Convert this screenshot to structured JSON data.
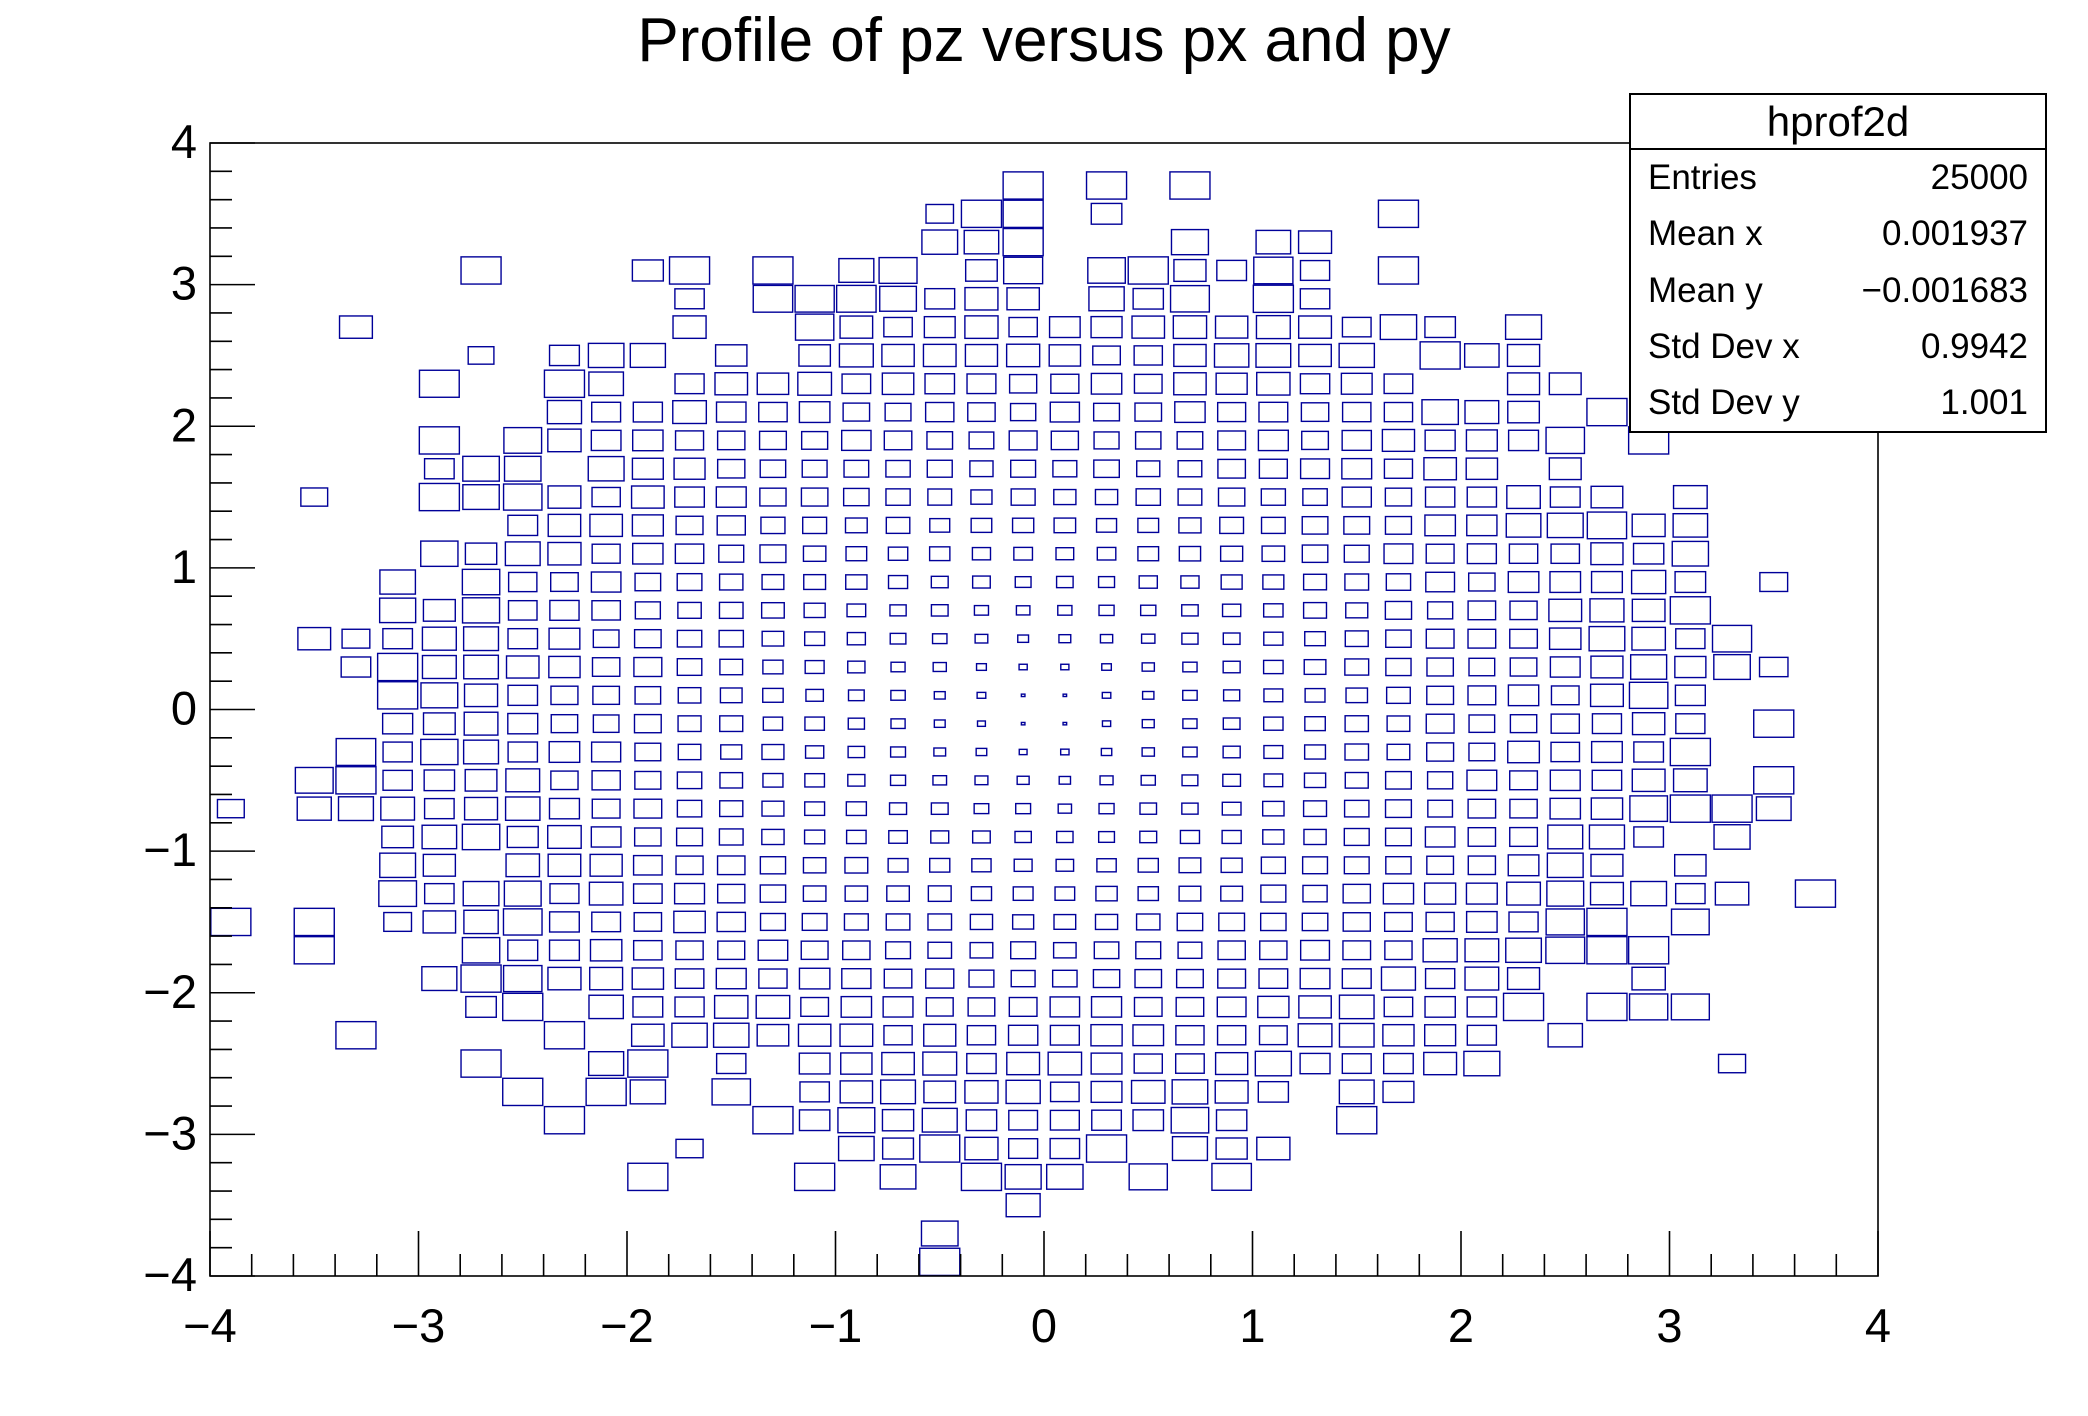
{
  "title": "Profile of pz versus px and py",
  "colors": {
    "box_stroke": "#000099",
    "axis": "#000000",
    "text": "#000000",
    "background": "#ffffff"
  },
  "stats_box": {
    "header": "hprof2d",
    "rows": [
      {
        "label": "Entries",
        "value": "25000"
      },
      {
        "label": "Mean x",
        "value": "0.001937"
      },
      {
        "label": "Mean y",
        "value": "−0.001683"
      },
      {
        "label": "Std Dev x",
        "value": "0.9942"
      },
      {
        "label": "Std Dev y",
        "value": "1.001"
      }
    ]
  },
  "chart_data": {
    "type": "heatmap",
    "render_style": "root-box-option",
    "title": "Profile of pz versus px and py",
    "histogram_name": "hprof2d",
    "xlabel": "",
    "ylabel": "",
    "x_range": [
      -4,
      4
    ],
    "y_range": [
      -4,
      4
    ],
    "bins": {
      "nx": 40,
      "ny": 40
    },
    "x_ticks": {
      "major": [
        -4,
        -3,
        -2,
        -1,
        0,
        1,
        2,
        3,
        4
      ],
      "labels": [
        "−4",
        "−3",
        "−2",
        "−1",
        "0",
        "1",
        "2",
        "3",
        "4"
      ],
      "minor_step": 0.2
    },
    "y_ticks": {
      "major": [
        -4,
        -3,
        -2,
        -1,
        0,
        1,
        2,
        3,
        4
      ],
      "labels": [
        "−4",
        "−3",
        "−2",
        "−1",
        "0",
        "1",
        "2",
        "3",
        "4"
      ],
      "minor_step": 0.2
    },
    "grid": false,
    "legend": null,
    "stats": {
      "entries": 25000,
      "mean_x": 0.001937,
      "mean_y": -0.001683,
      "std_dev_x": 0.9942,
      "std_dev_y": 1.001
    },
    "content_model": "TProfile2D: 25000 fills of (px,py,pz) with px,py ~ Gaussian(0,1) and pz = px^2 + py^2. Hollow blue boxes drawn per filled bin; box linear size grows with bin content (~radius^2), tiny at the origin, near full cell size at radius ~3-4; filled bins form a ragged disc of radius ~3.5 with sparse outliers to ~3.9.",
    "generator": {
      "seed": 1337,
      "entries": 25000,
      "bin_area": 0.04,
      "fill_model": "poisson-gaussian",
      "size_curve": {
        "base": 0.084,
        "scale": 0.736,
        "r0": 0.16,
        "rdiv": 2.84,
        "pow": 0.65,
        "min": 0.04,
        "max": 0.96
      }
    }
  }
}
